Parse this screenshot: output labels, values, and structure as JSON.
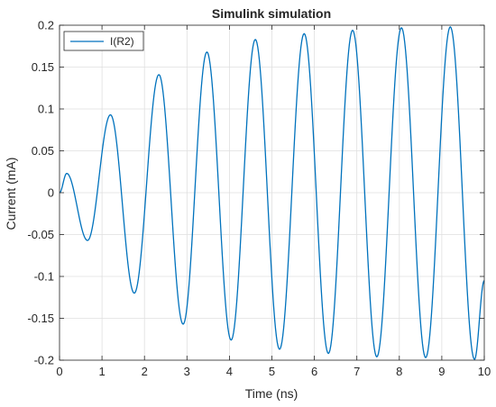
{
  "chart_data": {
    "type": "line",
    "title": "Simulink simulation",
    "xlabel": "Time (ns)",
    "ylabel": "Current (mA)",
    "xlim": [
      0,
      10
    ],
    "ylim": [
      -0.2,
      0.2
    ],
    "xticks": [
      0,
      1,
      2,
      3,
      4,
      5,
      6,
      7,
      8,
      9,
      10
    ],
    "xtick_labels": [
      "0",
      "1",
      "2",
      "3",
      "4",
      "5",
      "6",
      "7",
      "8",
      "9",
      "10"
    ],
    "yticks": [
      -0.2,
      -0.15,
      -0.1,
      -0.05,
      0,
      0.05,
      0.1,
      0.15,
      0.2
    ],
    "ytick_labels": [
      "-0.2",
      "-0.15",
      "-0.1",
      "-0.05",
      "0",
      "0.05",
      "0.1",
      "0.15",
      "0.2"
    ],
    "grid": true,
    "legend_position": "top-left",
    "series": [
      {
        "name": "I(R2)",
        "color": "#0072BD",
        "x": [
          0,
          0.17,
          0.66,
          1.2,
          1.76,
          2.34,
          2.91,
          3.47,
          4.04,
          4.61,
          5.18,
          5.76,
          6.33,
          6.9,
          7.47,
          8.05,
          8.62,
          9.2,
          9.77,
          10
        ],
        "y": [
          0,
          0.023,
          -0.057,
          0.093,
          -0.12,
          0.141,
          -0.157,
          0.168,
          -0.176,
          0.183,
          -0.187,
          0.19,
          -0.192,
          0.194,
          -0.196,
          0.197,
          -0.197,
          0.198,
          -0.199,
          -0.105
        ]
      }
    ]
  }
}
